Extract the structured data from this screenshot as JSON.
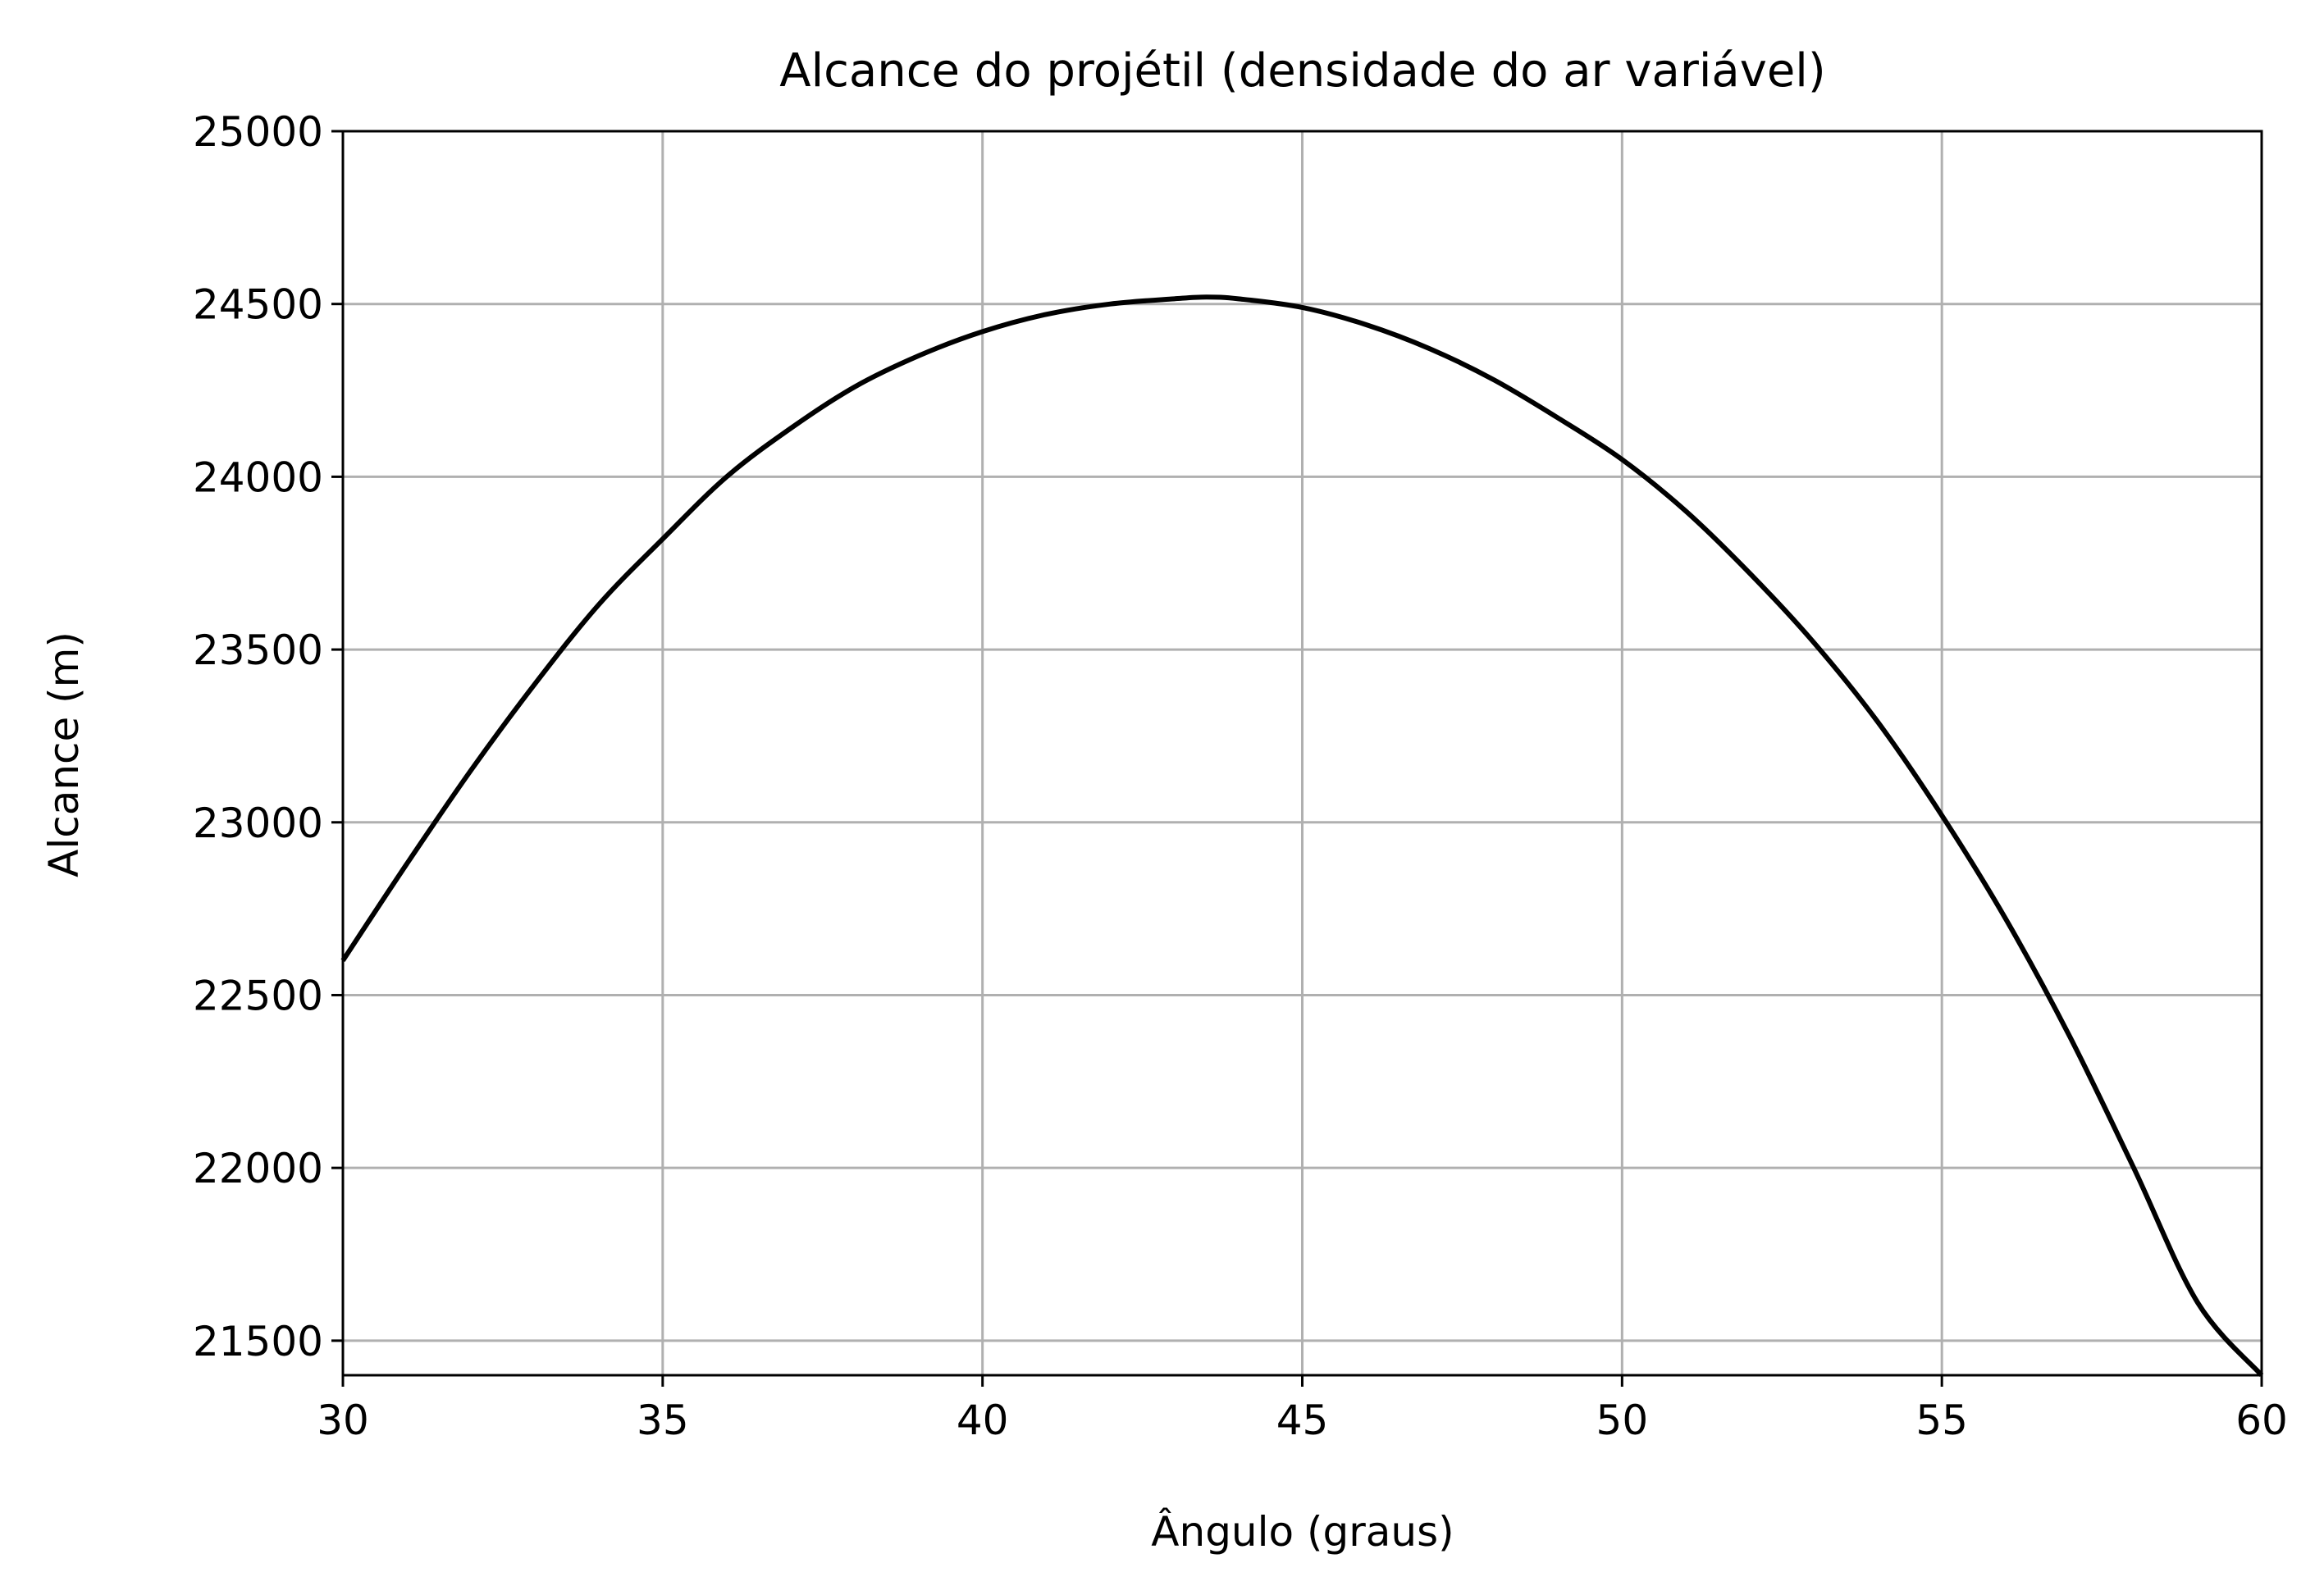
{
  "chart_data": {
    "type": "line",
    "title": "Alcance do projétil (densidade do ar variável)",
    "xlabel": "Ângulo (graus)",
    "ylabel": "Alcance (m)",
    "xlim": [
      30,
      60
    ],
    "ylim": [
      21400,
      25000
    ],
    "xticks": [
      30,
      35,
      40,
      45,
      50,
      55,
      60
    ],
    "yticks": [
      21500,
      22000,
      22500,
      23000,
      23500,
      24000,
      24500,
      25000
    ],
    "xtick_labels": [
      "30",
      "35",
      "40",
      "45",
      "50",
      "55",
      "60"
    ],
    "ytick_labels": [
      "21500",
      "22000",
      "22500",
      "23000",
      "23500",
      "24000",
      "24500",
      "25000"
    ],
    "grid": true,
    "series": [
      {
        "color": "#000000",
        "x": [
          30,
          31,
          32,
          33,
          34,
          35,
          36,
          37,
          38,
          39,
          40,
          41,
          42,
          43,
          43.5,
          44,
          45,
          46,
          47,
          48,
          49,
          50,
          51,
          52,
          53,
          54,
          55,
          56,
          57,
          58,
          59,
          60
        ],
        "y": [
          22600,
          22880,
          23150,
          23400,
          23630,
          23820,
          24000,
          24140,
          24260,
          24350,
          24420,
          24470,
          24500,
          24515,
          24520,
          24515,
          24490,
          24440,
          24370,
          24280,
          24170,
          24050,
          23900,
          23720,
          23520,
          23290,
          23020,
          22720,
          22380,
          22000,
          21610,
          21400
        ]
      }
    ]
  }
}
